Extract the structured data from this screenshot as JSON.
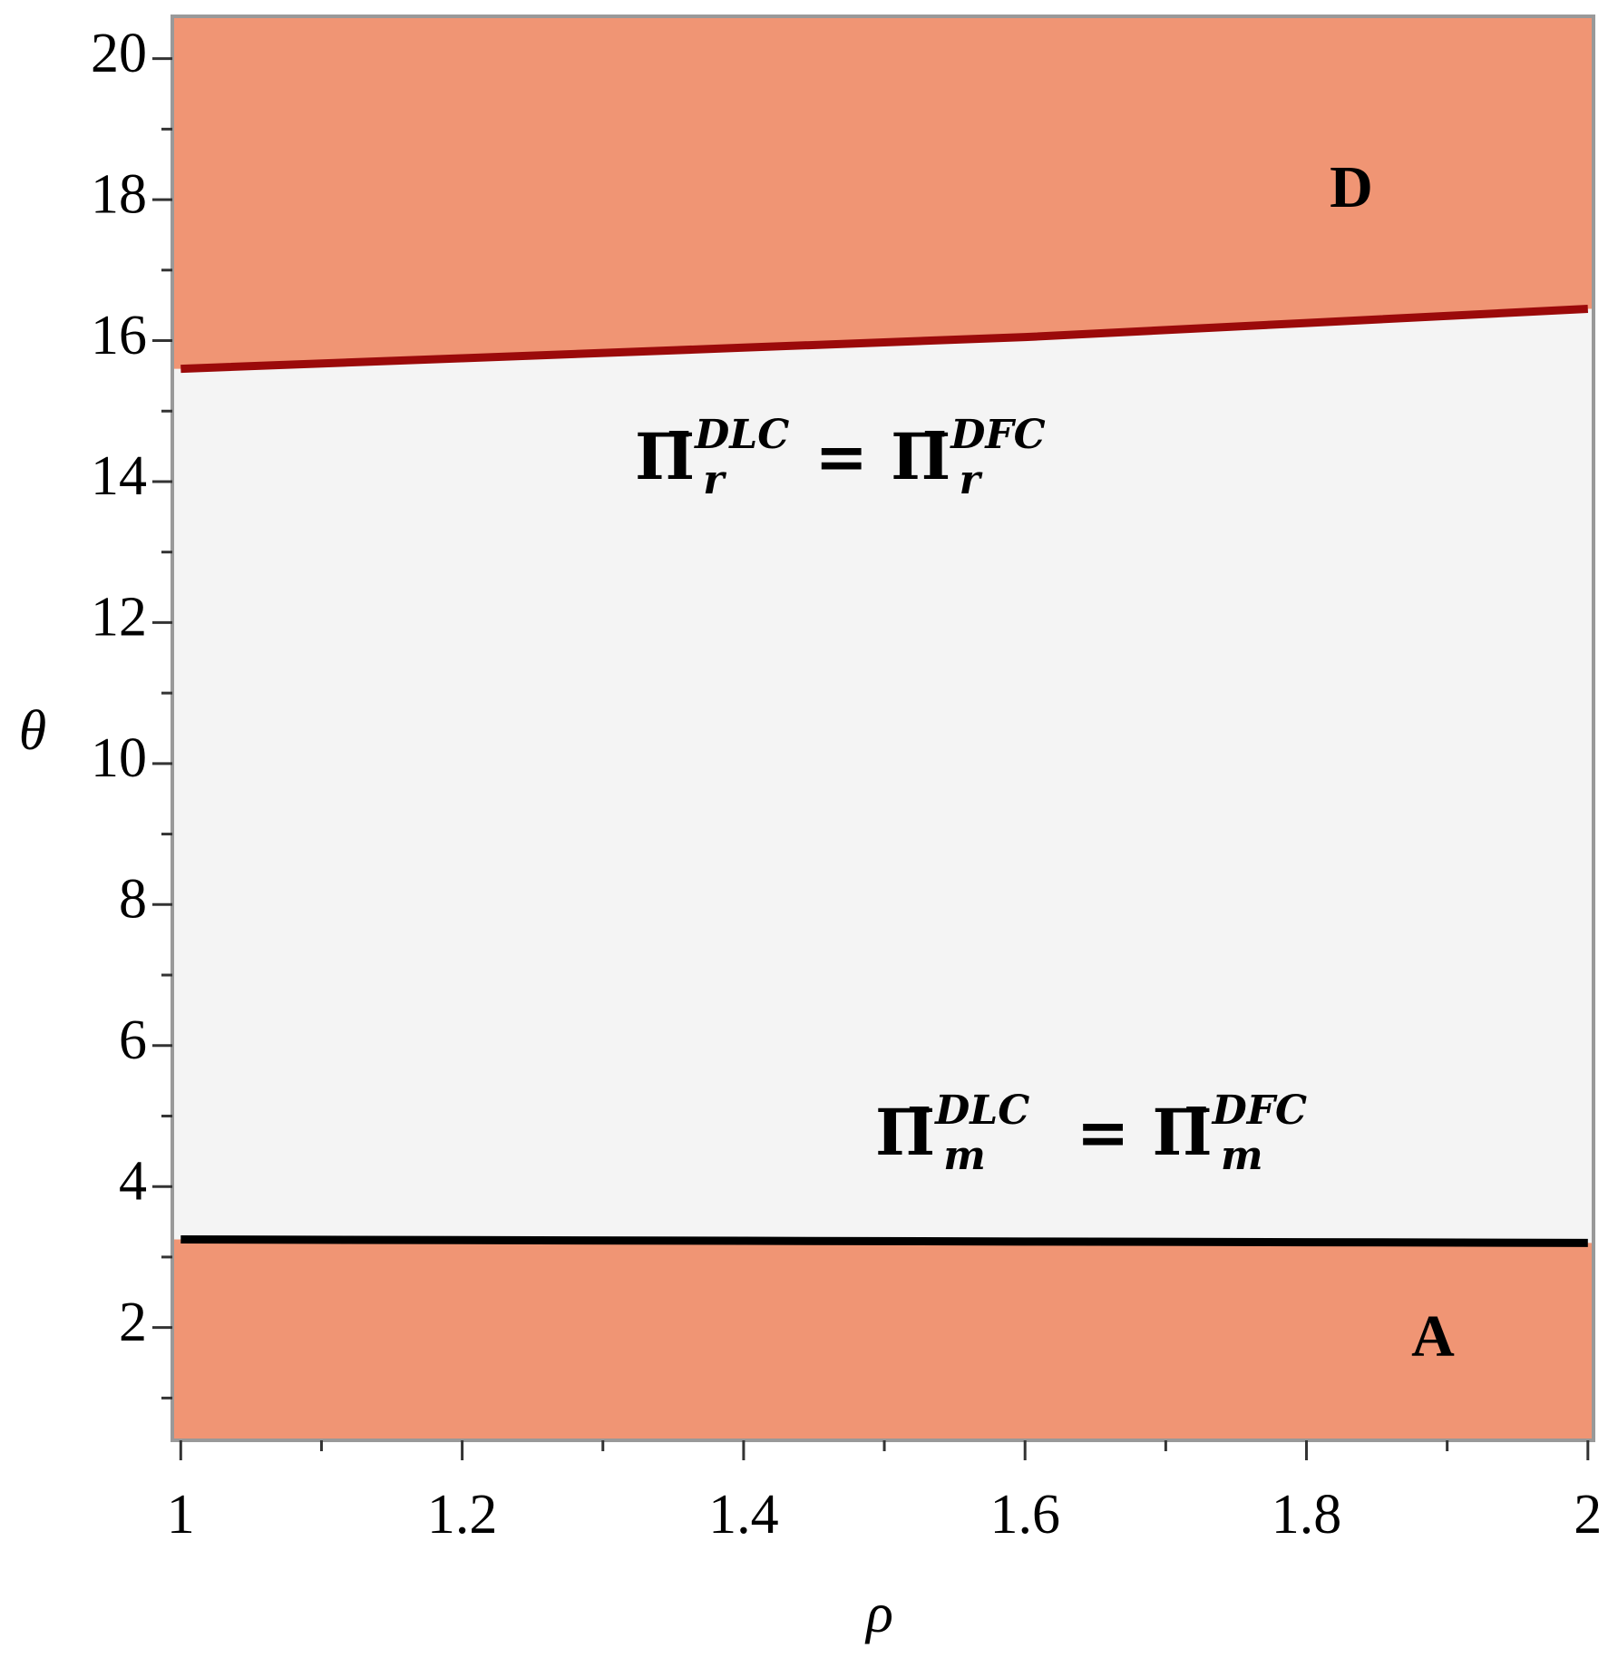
{
  "chart_data": {
    "type": "region",
    "x_label": "ρ",
    "y_label": "θ",
    "xlim": [
      0.994,
      2.004
    ],
    "ylim": [
      0.4,
      20.6
    ],
    "xticks": [
      1,
      1.2,
      1.4,
      1.6,
      1.8,
      2
    ],
    "xminor": [
      1.1,
      1.3,
      1.5,
      1.7,
      1.9
    ],
    "yticks": [
      2,
      4,
      6,
      8,
      10,
      12,
      14,
      16,
      18,
      20
    ],
    "yminor": [
      1,
      3,
      5,
      7,
      9,
      11,
      13,
      15,
      17,
      19
    ],
    "background": "#f4f4f4",
    "region_color": "#f09574",
    "x": [
      1,
      1.2,
      1.4,
      1.6,
      1.8,
      2
    ],
    "series": [
      {
        "color": "#9b0a0a",
        "values": [
          15.6,
          15.75,
          15.9,
          16.05,
          16.25,
          16.45
        ],
        "fill": "above"
      },
      {
        "color": "#000000",
        "values": [
          3.25,
          3.24,
          3.23,
          3.22,
          3.21,
          3.2
        ],
        "fill": "below"
      }
    ],
    "regions": [
      "D",
      "A"
    ],
    "curve_labels": [
      {
        "lhs": {
          "symbol": "Π̄",
          "sub": "r",
          "sup": "DLC"
        },
        "relation": "=",
        "rhs": {
          "symbol": "Π̄",
          "sub": "r",
          "sup": "DFC"
        }
      },
      {
        "lhs": {
          "symbol": "Π̄",
          "sub": "m",
          "sup": "DLC"
        },
        "relation": "=",
        "rhs": {
          "symbol": "Π̄",
          "sub": "m",
          "sup": "DFC"
        }
      }
    ]
  }
}
